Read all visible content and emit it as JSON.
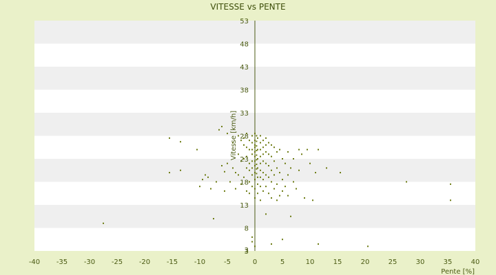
{
  "chart_data": {
    "type": "scatter",
    "title": "VITESSE vs PENTE",
    "xlabel": "Pente [%]",
    "ylabel": "Vitesse [km/h]",
    "xlim": [
      -40,
      40
    ],
    "ylim": [
      3,
      53
    ],
    "xticks": [
      -40,
      -35,
      -30,
      -25,
      -20,
      -15,
      -10,
      -5,
      0,
      5,
      10,
      15,
      20,
      25,
      30,
      35,
      40
    ],
    "yticks": [
      3,
      8,
      13,
      18,
      23,
      28,
      33,
      38,
      43,
      48,
      53
    ],
    "ytick_labels": [
      "3",
      "8",
      "13",
      "18",
      "23",
      "28",
      "33",
      "38",
      "43",
      "48",
      "53"
    ],
    "bottom_tick_label": "3",
    "grid": "horizontal alternating bands",
    "legend": "none",
    "colors": {
      "points": "#6b7a10",
      "band_light": "#ffffff",
      "band_dark": "#efefef",
      "axis": "#4a5a12",
      "background": "#eaf1c9"
    },
    "series": [
      {
        "points": [
          [
            -27.5,
            9.0
          ],
          [
            -15.5,
            20.0
          ],
          [
            -15.5,
            27.5
          ],
          [
            -13.5,
            26.7
          ],
          [
            -13.5,
            20.5
          ],
          [
            -10.5,
            25.0
          ],
          [
            -10.0,
            17.0
          ],
          [
            -9.5,
            18.5
          ],
          [
            -9.0,
            19.5
          ],
          [
            -8.5,
            19.0
          ],
          [
            -8.0,
            16.5
          ],
          [
            -7.5,
            10.0
          ],
          [
            -7.0,
            18.0
          ],
          [
            -6.5,
            29.3
          ],
          [
            -6.0,
            30.0
          ],
          [
            -6.0,
            21.5
          ],
          [
            -5.5,
            20.2
          ],
          [
            -5.5,
            16.0
          ],
          [
            -5.0,
            28.5
          ],
          [
            -5.0,
            22.0
          ],
          [
            -4.5,
            18.0
          ],
          [
            -4.0,
            26.5
          ],
          [
            -4.0,
            21.0
          ],
          [
            -3.5,
            20.0
          ],
          [
            -3.5,
            16.5
          ],
          [
            -3.0,
            28.0
          ],
          [
            -3.0,
            24.0
          ],
          [
            -3.0,
            19.5
          ],
          [
            -2.5,
            27.0
          ],
          [
            -2.5,
            22.5
          ],
          [
            -2.5,
            17.5
          ],
          [
            -2.0,
            27.5
          ],
          [
            -2.0,
            26.0
          ],
          [
            -2.0,
            23.0
          ],
          [
            -2.0,
            19.0
          ],
          [
            -1.5,
            28.5
          ],
          [
            -1.5,
            25.5
          ],
          [
            -1.5,
            23.5
          ],
          [
            -1.5,
            21.0
          ],
          [
            -1.5,
            16.0
          ],
          [
            -1.0,
            27.0
          ],
          [
            -1.0,
            25.0
          ],
          [
            -1.0,
            22.0
          ],
          [
            -1.0,
            20.5
          ],
          [
            -1.0,
            18.0
          ],
          [
            -1.0,
            15.5
          ],
          [
            -0.5,
            28.0
          ],
          [
            -0.5,
            26.5
          ],
          [
            -0.5,
            25.0
          ],
          [
            -0.5,
            24.0
          ],
          [
            -0.5,
            22.5
          ],
          [
            -0.5,
            21.0
          ],
          [
            -0.5,
            19.5
          ],
          [
            -0.5,
            17.0
          ],
          [
            0.0,
            28.5
          ],
          [
            0.0,
            27.0
          ],
          [
            0.0,
            26.0
          ],
          [
            0.0,
            25.5
          ],
          [
            0.0,
            24.5
          ],
          [
            0.0,
            23.5
          ],
          [
            0.0,
            22.5
          ],
          [
            0.0,
            21.5
          ],
          [
            0.0,
            20.0
          ],
          [
            0.0,
            18.5
          ],
          [
            0.0,
            16.5
          ],
          [
            0.0,
            14.5
          ],
          [
            0.3,
            28.0
          ],
          [
            0.3,
            26.8
          ],
          [
            0.3,
            25.8
          ],
          [
            0.3,
            24.8
          ],
          [
            0.3,
            23.8
          ],
          [
            0.3,
            22.8
          ],
          [
            0.3,
            21.8
          ],
          [
            0.3,
            20.8
          ],
          [
            0.3,
            19.8
          ],
          [
            0.5,
            27.5
          ],
          [
            0.5,
            25.0
          ],
          [
            0.5,
            23.0
          ],
          [
            0.5,
            21.0
          ],
          [
            0.5,
            19.0
          ],
          [
            0.5,
            17.5
          ],
          [
            0.5,
            15.5
          ],
          [
            1.0,
            28.0
          ],
          [
            1.0,
            26.5
          ],
          [
            1.0,
            25.0
          ],
          [
            1.0,
            23.5
          ],
          [
            1.0,
            22.0
          ],
          [
            1.0,
            20.5
          ],
          [
            1.0,
            19.0
          ],
          [
            1.0,
            17.0
          ],
          [
            1.0,
            14.0
          ],
          [
            1.5,
            27.0
          ],
          [
            1.5,
            25.5
          ],
          [
            1.5,
            24.0
          ],
          [
            1.5,
            22.5
          ],
          [
            1.5,
            20.0
          ],
          [
            1.5,
            18.5
          ],
          [
            1.5,
            16.0
          ],
          [
            2.0,
            27.5
          ],
          [
            2.0,
            26.0
          ],
          [
            2.0,
            24.5
          ],
          [
            2.0,
            22.0
          ],
          [
            2.0,
            19.5
          ],
          [
            2.0,
            17.0
          ],
          [
            2.0,
            11.0
          ],
          [
            2.5,
            26.5
          ],
          [
            2.5,
            24.0
          ],
          [
            2.5,
            21.5
          ],
          [
            2.5,
            19.0
          ],
          [
            2.5,
            15.5
          ],
          [
            3.0,
            26.0
          ],
          [
            3.0,
            23.5
          ],
          [
            3.0,
            20.5
          ],
          [
            3.0,
            18.0
          ],
          [
            3.0,
            14.5
          ],
          [
            3.5,
            25.5
          ],
          [
            3.5,
            22.5
          ],
          [
            3.5,
            19.5
          ],
          [
            3.5,
            16.5
          ],
          [
            4.0,
            24.5
          ],
          [
            4.0,
            21.0
          ],
          [
            4.0,
            17.5
          ],
          [
            4.0,
            14.0
          ],
          [
            4.5,
            25.0
          ],
          [
            4.5,
            20.0
          ],
          [
            4.5,
            15.0
          ],
          [
            5.0,
            23.0
          ],
          [
            5.0,
            18.5
          ],
          [
            5.0,
            16.0
          ],
          [
            5.5,
            22.0
          ],
          [
            5.5,
            17.0
          ],
          [
            6.0,
            24.5
          ],
          [
            6.0,
            19.5
          ],
          [
            6.0,
            15.0
          ],
          [
            6.5,
            21.0
          ],
          [
            6.5,
            10.5
          ],
          [
            7.0,
            23.0
          ],
          [
            7.0,
            18.0
          ],
          [
            7.5,
            16.5
          ],
          [
            8.0,
            25.0
          ],
          [
            8.0,
            20.5
          ],
          [
            8.5,
            24.0
          ],
          [
            9.0,
            14.5
          ],
          [
            9.5,
            25.0
          ],
          [
            10.0,
            22.0
          ],
          [
            10.5,
            14.0
          ],
          [
            11.0,
            20.0
          ],
          [
            11.5,
            25.0
          ],
          [
            13.0,
            21.0
          ],
          [
            15.5,
            20.0
          ],
          [
            -0.5,
            6.0
          ],
          [
            -0.5,
            5.0
          ],
          [
            0.0,
            4.0
          ],
          [
            3.0,
            4.5
          ],
          [
            5.0,
            5.5
          ],
          [
            11.5,
            4.5
          ],
          [
            20.5,
            4.0
          ],
          [
            27.5,
            18.0
          ],
          [
            35.5,
            17.5
          ],
          [
            35.5,
            14.0
          ]
        ]
      }
    ]
  }
}
